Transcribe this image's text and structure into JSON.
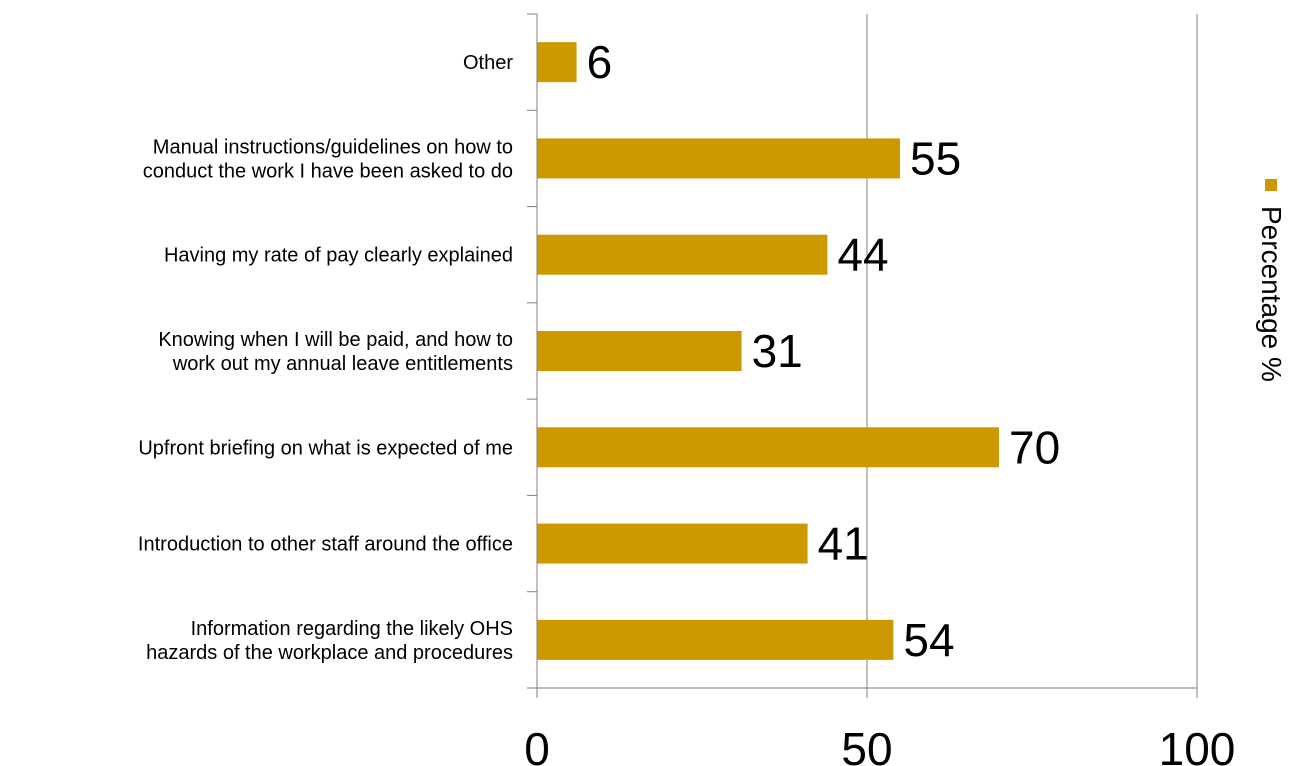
{
  "chart_data": {
    "type": "bar",
    "orientation": "horizontal",
    "categories": [
      [
        "Other"
      ],
      [
        "Manual instructions/guidelines on how to",
        "conduct the work I have been asked to do"
      ],
      [
        "Having my rate of pay clearly explained"
      ],
      [
        "Knowing when I will be paid, and how to",
        "work out my annual leave entitlements"
      ],
      [
        "Upfront briefing on what is expected of me"
      ],
      [
        "Introduction to other staff around the office"
      ],
      [
        "Information regarding the likely OHS",
        "hazards of the workplace and procedures"
      ]
    ],
    "series": [
      {
        "name": "Percentage %",
        "values": [
          6,
          55,
          44,
          31,
          70,
          41,
          54
        ],
        "color": "#cc9900"
      }
    ],
    "xlim": [
      0,
      100
    ],
    "xticks": [
      0,
      50,
      100
    ],
    "grid": "vertical",
    "legend_position": "right",
    "legend_orientation": "rotated-vertical",
    "gridline_color": "#808080"
  }
}
